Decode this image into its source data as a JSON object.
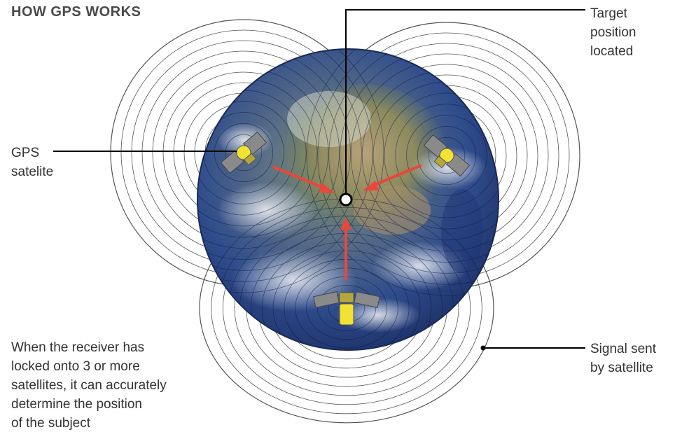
{
  "title": "HOW GPS WORKS",
  "labels": {
    "target": "Target\nposition\nlocated",
    "gps_satellite": "GPS\nsatelite",
    "signal": "Signal sent\nby satellite",
    "description": "When the receiver has\nlocked onto 3 or more\nsatellites, it can accurately\ndetermine the position\nof the subject"
  },
  "colors": {
    "background": "#ffffff",
    "arrow": "#e9473b",
    "globe_ocean": "#2e4a8f",
    "signal_ring": "#555555",
    "leader_line": "#000000",
    "satellite_body": "#f2e233",
    "satellite_panel": "#8a8a8a"
  },
  "icons": [
    "gps-satellite-icon",
    "receiver-target-icon",
    "earth-globe"
  ]
}
